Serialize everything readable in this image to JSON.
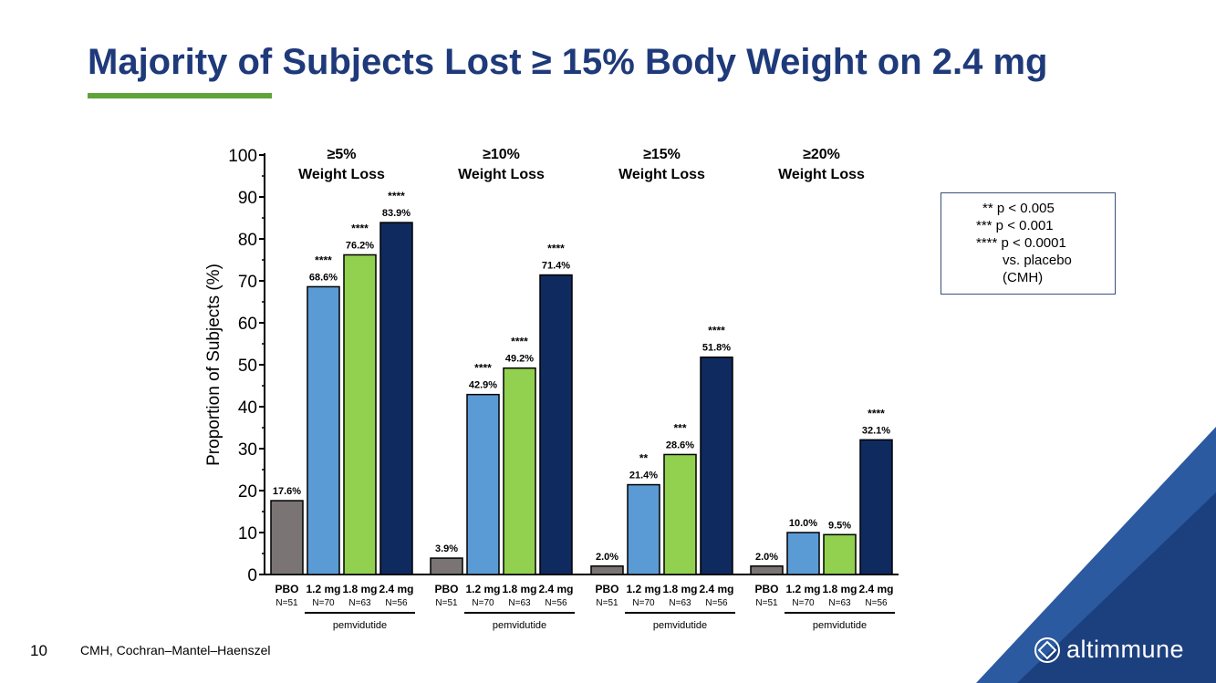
{
  "slide": {
    "title": "Majority of Subjects Lost ≥ 15% Body Weight on 2.4 mg",
    "page_number": "10",
    "footnote": "CMH, Cochran–Mantel–Haenszel",
    "logo_text": "altimmune",
    "accent_color": "#5fa43a",
    "title_color": "#1f3a7a"
  },
  "legend": {
    "line1": "** p  < 0.005",
    "line2": "*** p  < 0.001",
    "line3": "**** p < 0.0001",
    "line4": "vs. placebo",
    "line5": "(CMH)"
  },
  "chart_data": {
    "type": "bar",
    "ylabel": "Proportion of Subjects (%)",
    "ylim": [
      0,
      100
    ],
    "yticks": [
      0,
      10,
      20,
      30,
      40,
      50,
      60,
      70,
      80,
      90,
      100
    ],
    "grid": false,
    "categories": [
      "PBO",
      "1.2 mg",
      "1.8 mg",
      "2.4 mg"
    ],
    "sample_sizes": [
      "N=51",
      "N=70",
      "N=63",
      "N=56"
    ],
    "treatment_group_label": "pemvidutide",
    "colors": [
      "#7a7574",
      "#5b9bd5",
      "#92d050",
      "#0f2a5e"
    ],
    "groups": [
      {
        "label_line1": "≥5%",
        "label_line2": "Weight Loss",
        "values": [
          17.6,
          68.6,
          76.2,
          83.9
        ],
        "value_labels": [
          "17.6%",
          "68.6%",
          "76.2%",
          "83.9%"
        ],
        "significance": [
          "",
          "****",
          "****",
          "****"
        ]
      },
      {
        "label_line1": "≥10%",
        "label_line2": "Weight Loss",
        "values": [
          3.9,
          42.9,
          49.2,
          71.4
        ],
        "value_labels": [
          "3.9%",
          "42.9%",
          "49.2%",
          "71.4%"
        ],
        "significance": [
          "",
          "****",
          "****",
          "****"
        ]
      },
      {
        "label_line1": "≥15%",
        "label_line2": "Weight Loss",
        "values": [
          2.0,
          21.4,
          28.6,
          51.8
        ],
        "value_labels": [
          "2.0%",
          "21.4%",
          "28.6%",
          "51.8%"
        ],
        "significance": [
          "",
          "**",
          "***",
          "****"
        ]
      },
      {
        "label_line1": "≥20%",
        "label_line2": "Weight Loss",
        "values": [
          2.0,
          10.0,
          9.5,
          32.1
        ],
        "value_labels": [
          "2.0%",
          "10.0%",
          "9.5%",
          "32.1%"
        ],
        "significance": [
          "",
          "",
          "",
          "****"
        ]
      }
    ]
  }
}
